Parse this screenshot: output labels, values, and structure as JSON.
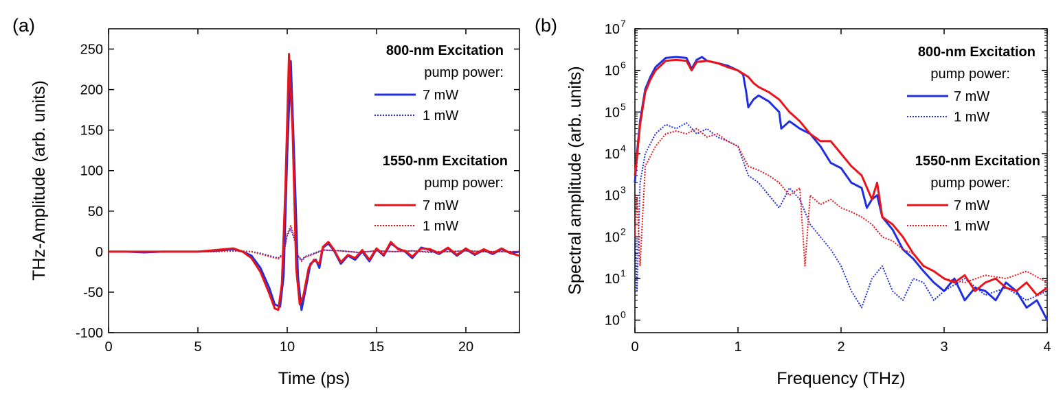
{
  "chart_data": [
    {
      "panel": "(a)",
      "type": "line",
      "title": "",
      "xlabel": "Time (ps)",
      "ylabel": "THz-Amplitude (arb. units)",
      "xlim": [
        0,
        23
      ],
      "ylim": [
        -100,
        275
      ],
      "xticks": [
        0,
        5,
        10,
        15,
        20
      ],
      "yticks": [
        -100,
        -50,
        0,
        50,
        100,
        150,
        200,
        250
      ],
      "legend": {
        "groups": [
          {
            "heading": "800-nm Excitation",
            "subheading": "pump power:",
            "entries": [
              {
                "label": "7 mW",
                "color": "#1f2fe0",
                "style": "solid"
              },
              {
                "label": "1 mW",
                "color": "#1f2fe0",
                "style": "dotted"
              }
            ]
          },
          {
            "heading": "1550-nm Excitation",
            "subheading": "pump power:",
            "entries": [
              {
                "label": "7 mW",
                "color": "#e8141b",
                "style": "solid"
              },
              {
                "label": "1 mW",
                "color": "#e8141b",
                "style": "dotted"
              }
            ]
          }
        ]
      },
      "series": [
        {
          "name": "800-nm 7 mW",
          "color": "#1f2fe0",
          "style": "solid",
          "x": [
            0,
            1,
            2,
            3,
            4,
            5,
            6,
            6.5,
            7,
            7.5,
            8,
            8.5,
            9,
            9.3,
            9.6,
            9.8,
            10,
            10.2,
            10.4,
            10.6,
            10.8,
            11,
            11.3,
            11.6,
            11.8,
            12,
            12.3,
            12.6,
            13,
            13.4,
            13.8,
            14.2,
            14.6,
            15,
            15.4,
            15.8,
            16.2,
            16.6,
            17,
            17.5,
            18,
            18.5,
            19,
            19.5,
            20,
            20.5,
            21,
            21.5,
            22,
            22.5,
            23
          ],
          "y": [
            0,
            0,
            -1,
            0,
            0,
            0,
            1,
            2,
            3,
            0,
            -5,
            -20,
            -45,
            -65,
            -68,
            -30,
            120,
            235,
            110,
            -30,
            -72,
            -50,
            -15,
            -10,
            -20,
            5,
            10,
            2,
            -15,
            -5,
            -10,
            0,
            -12,
            3,
            -5,
            10,
            4,
            0,
            -8,
            5,
            2,
            -3,
            4,
            -5,
            3,
            -4,
            2,
            -3,
            3,
            -2,
            0
          ]
        },
        {
          "name": "800-nm 1 mW",
          "color": "#1f2fe0",
          "style": "dotted",
          "x": [
            0,
            2,
            4,
            6,
            7,
            8,
            8.5,
            9,
            9.5,
            9.8,
            10,
            10.2,
            10.4,
            10.6,
            10.8,
            11,
            11.5,
            12,
            13,
            14,
            15,
            16,
            17,
            18,
            19,
            20,
            21,
            22,
            23
          ],
          "y": [
            0,
            0,
            0,
            0,
            1,
            0,
            -2,
            -5,
            -8,
            -2,
            20,
            28,
            15,
            -5,
            -10,
            -6,
            -2,
            2,
            1,
            -1,
            1,
            0,
            1,
            -1,
            0,
            1,
            0,
            0,
            0
          ]
        },
        {
          "name": "1550-nm 7 mW",
          "color": "#e8141b",
          "style": "solid",
          "x": [
            0,
            1,
            2,
            3,
            4,
            5,
            6,
            6.5,
            7,
            7.5,
            8,
            8.5,
            9,
            9.3,
            9.5,
            9.7,
            9.9,
            10.1,
            10.3,
            10.5,
            10.7,
            10.9,
            11.2,
            11.5,
            11.8,
            12,
            12.3,
            12.6,
            13,
            13.4,
            13.8,
            14.2,
            14.6,
            15,
            15.4,
            15.8,
            16.2,
            16.6,
            17,
            17.5,
            18,
            18.5,
            19,
            19.5,
            20,
            20.5,
            21,
            21.5,
            22,
            22.5,
            23
          ],
          "y": [
            0,
            0,
            0,
            0,
            0,
            0,
            2,
            3,
            4,
            0,
            -8,
            -25,
            -52,
            -70,
            -72,
            -40,
            80,
            244,
            150,
            -20,
            -65,
            -55,
            -20,
            -10,
            -15,
            6,
            12,
            3,
            -13,
            -4,
            -8,
            2,
            -10,
            4,
            -4,
            12,
            3,
            1,
            -6,
            4,
            3,
            -2,
            5,
            -4,
            4,
            -3,
            3,
            -2,
            4,
            -2,
            -5
          ]
        },
        {
          "name": "1550-nm 1 mW",
          "color": "#e8141b",
          "style": "dotted",
          "x": [
            0,
            2,
            4,
            6,
            7,
            8,
            8.5,
            9,
            9.5,
            9.8,
            10,
            10.2,
            10.4,
            10.6,
            10.8,
            11,
            11.5,
            12,
            13,
            14,
            15,
            16,
            17,
            18,
            19,
            20,
            21,
            22,
            23
          ],
          "y": [
            0,
            0,
            0,
            0,
            1,
            0,
            -3,
            -6,
            -9,
            -3,
            22,
            32,
            18,
            -5,
            -12,
            -7,
            -3,
            2,
            1,
            -1,
            1,
            0,
            1,
            0,
            0,
            1,
            0,
            0,
            0
          ]
        }
      ]
    },
    {
      "panel": "(b)",
      "type": "line",
      "title": "",
      "xlabel": "Frequency (THz)",
      "ylabel": "Spectral amplitude (arb. units)",
      "yscale": "log",
      "xlim": [
        0,
        4
      ],
      "ylim": [
        0.5,
        10000000
      ],
      "xticks": [
        0,
        1,
        2,
        3,
        4
      ],
      "yticks": [
        1,
        10,
        100,
        1000,
        10000,
        100000,
        1000000,
        10000000
      ],
      "ytick_labels": [
        "10^0",
        "10^1",
        "10^2",
        "10^3",
        "10^4",
        "10^5",
        "10^6",
        "10^7"
      ],
      "legend": {
        "groups": [
          {
            "heading": "800-nm Excitation",
            "subheading": "pump power:",
            "entries": [
              {
                "label": "7 mW",
                "color": "#1f2fe0",
                "style": "solid"
              },
              {
                "label": "1 mW",
                "color": "#1f2fe0",
                "style": "dotted"
              }
            ]
          },
          {
            "heading": "1550-nm Excitation",
            "subheading": "pump power:",
            "entries": [
              {
                "label": "7 mW",
                "color": "#e8141b",
                "style": "solid"
              },
              {
                "label": "1 mW",
                "color": "#e8141b",
                "style": "dotted"
              }
            ]
          }
        ]
      },
      "series": [
        {
          "name": "800-nm 7 mW",
          "color": "#1f2fe0",
          "style": "solid",
          "x": [
            0,
            0.02,
            0.05,
            0.1,
            0.15,
            0.2,
            0.3,
            0.4,
            0.5,
            0.55,
            0.6,
            0.65,
            0.7,
            0.8,
            0.9,
            1.0,
            1.05,
            1.08,
            1.1,
            1.15,
            1.2,
            1.3,
            1.4,
            1.42,
            1.5,
            1.6,
            1.7,
            1.8,
            1.9,
            2.0,
            2.1,
            2.2,
            2.25,
            2.3,
            2.35,
            2.4,
            2.5,
            2.6,
            2.7,
            2.8,
            2.9,
            3.0,
            3.1,
            3.2,
            3.3,
            3.4,
            3.5,
            3.6,
            3.7,
            3.8,
            3.9,
            4.0
          ],
          "y": [
            2000,
            10000,
            60000,
            350000,
            700000,
            1200000,
            2000000,
            2100000,
            2000000,
            1100000,
            1800000,
            2100000,
            1700000,
            1500000,
            1300000,
            1000000,
            800000,
            300000,
            130000,
            200000,
            250000,
            180000,
            100000,
            40000,
            60000,
            40000,
            30000,
            15000,
            6000,
            4500,
            2000,
            1500,
            500,
            800,
            1000,
            300,
            150,
            50,
            30,
            15,
            8,
            5,
            10,
            3,
            6,
            5,
            3,
            8,
            5,
            2,
            3,
            1
          ]
        },
        {
          "name": "800-nm 1 mW",
          "color": "#1f2fe0",
          "style": "dotted",
          "x": [
            0,
            0.02,
            0.05,
            0.1,
            0.2,
            0.3,
            0.4,
            0.5,
            0.6,
            0.7,
            0.8,
            0.9,
            1.0,
            1.1,
            1.2,
            1.3,
            1.4,
            1.5,
            1.6,
            1.7,
            1.8,
            1.9,
            2.0,
            2.1,
            2.2,
            2.3,
            2.4,
            2.5,
            2.6,
            2.7,
            2.8,
            2.9,
            3.0,
            3.2,
            3.4,
            3.6,
            3.8,
            4.0
          ],
          "y": [
            200,
            5,
            2000,
            10000,
            30000,
            50000,
            40000,
            55000,
            30000,
            40000,
            25000,
            20000,
            15000,
            3000,
            2000,
            1000,
            500,
            1500,
            800,
            200,
            100,
            50,
            20,
            5,
            2,
            10,
            20,
            5,
            3,
            10,
            8,
            3,
            5,
            10,
            4,
            6,
            3,
            5
          ]
        },
        {
          "name": "1550-nm 7 mW",
          "color": "#e8141b",
          "style": "solid",
          "x": [
            0,
            0.02,
            0.05,
            0.1,
            0.15,
            0.2,
            0.3,
            0.4,
            0.5,
            0.55,
            0.6,
            0.7,
            0.8,
            0.9,
            1.0,
            1.1,
            1.15,
            1.2,
            1.3,
            1.4,
            1.5,
            1.6,
            1.7,
            1.8,
            1.9,
            2.0,
            2.1,
            2.2,
            2.3,
            2.35,
            2.4,
            2.5,
            2.6,
            2.7,
            2.8,
            2.9,
            3.0,
            3.1,
            3.2,
            3.3,
            3.4,
            3.5,
            3.6,
            3.7,
            3.8,
            3.9,
            4.0
          ],
          "y": [
            3000,
            8000,
            50000,
            300000,
            600000,
            1000000,
            1700000,
            1800000,
            1700000,
            1000000,
            1600000,
            1700000,
            1500000,
            1200000,
            1000000,
            700000,
            500000,
            400000,
            300000,
            200000,
            100000,
            60000,
            30000,
            20000,
            20000,
            10000,
            5000,
            3000,
            800,
            2000,
            300,
            200,
            100,
            40,
            20,
            15,
            10,
            8,
            12,
            5,
            8,
            10,
            6,
            5,
            8,
            4,
            6
          ]
        },
        {
          "name": "1550-nm 1 mW",
          "color": "#e8141b",
          "style": "dotted",
          "x": [
            0,
            0.02,
            0.05,
            0.1,
            0.2,
            0.3,
            0.4,
            0.5,
            0.6,
            0.7,
            0.8,
            0.9,
            1.0,
            1.1,
            1.2,
            1.3,
            1.4,
            1.5,
            1.6,
            1.65,
            1.7,
            1.8,
            1.9,
            2.0,
            2.1,
            2.2,
            2.3,
            2.4,
            2.5,
            2.6,
            2.7,
            2.8,
            2.9,
            3.0,
            3.2,
            3.4,
            3.6,
            3.8,
            4.0
          ],
          "y": [
            100,
            1000,
            20,
            5000,
            15000,
            30000,
            35000,
            30000,
            40000,
            25000,
            30000,
            20000,
            15000,
            5000,
            4000,
            3000,
            2000,
            1000,
            1500,
            20,
            1000,
            600,
            800,
            500,
            400,
            300,
            200,
            100,
            80,
            50,
            40,
            20,
            15,
            10,
            8,
            12,
            10,
            15,
            8
          ]
        }
      ]
    }
  ]
}
